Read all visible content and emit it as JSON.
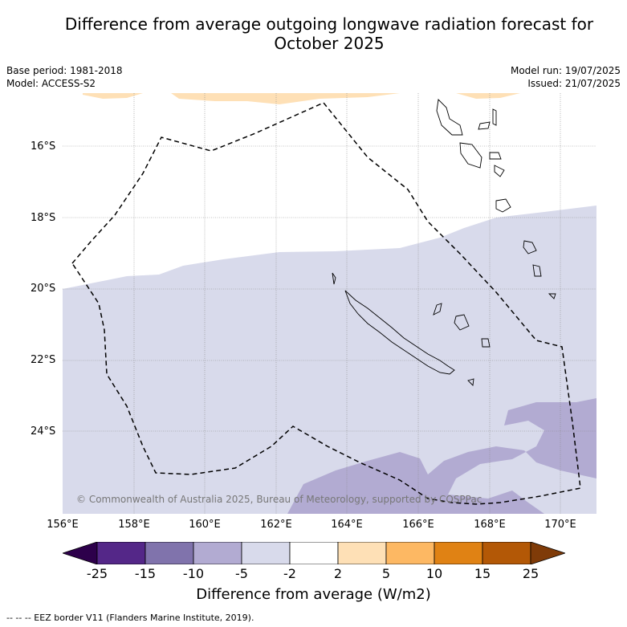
{
  "title_line1": "Difference from average outgoing longwave radiation forecast for",
  "title_line2": "October 2025",
  "base_period": "Base period: 1981-2018",
  "model": "Model: ACCESS-S2",
  "model_run": "Model run: 19/07/2025",
  "issued": "Issued: 21/07/2025",
  "y_axis_labels": [
    "16°S",
    "18°S",
    "20°S",
    "22°S",
    "24°S"
  ],
  "x_axis_labels": [
    "156°E",
    "158°E",
    "160°E",
    "162°E",
    "164°E",
    "166°E",
    "168°E",
    "170°E"
  ],
  "colorbar": {
    "ticks": [
      "-25",
      "-15",
      "-10",
      "-5",
      "-2",
      "2",
      "5",
      "10",
      "15",
      "25"
    ],
    "label": "Difference from average (W/m2)",
    "colors": [
      "#2d004b",
      "#542788",
      "#8073ac",
      "#b2abd2",
      "#d8daeb",
      "#ffffff",
      "#fee0b6",
      "#fdb863",
      "#e08214",
      "#b35806",
      "#7f3b08"
    ]
  },
  "copyright": "© Commonwealth of Australia 2025, Bureau of Meteorology, supported by COSPPac",
  "footnote": "-- -- -- EEZ border V11 (Flanders Marine Institute, 2019)."
}
